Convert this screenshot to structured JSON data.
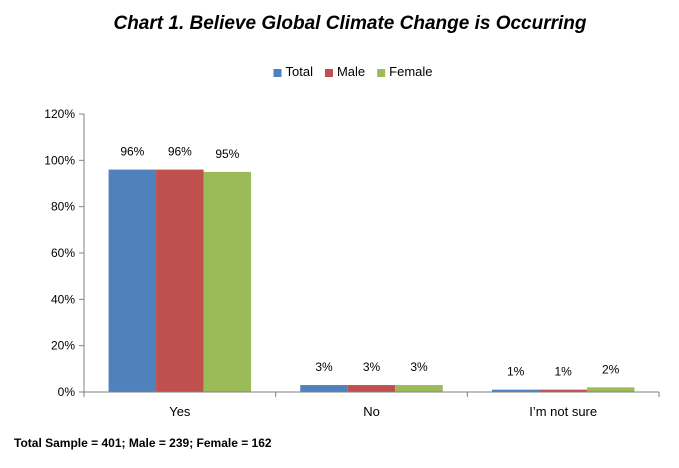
{
  "chart_data": {
    "type": "bar",
    "title": "Chart 1. Believe Global Climate Change is Occurring",
    "categories": [
      "Yes",
      "No",
      "I’m not sure"
    ],
    "series": [
      {
        "name": "Total",
        "values": [
          96,
          3,
          1
        ],
        "labels": [
          "96%",
          "3%",
          "1%"
        ],
        "color": "#4F81BD"
      },
      {
        "name": "Male",
        "values": [
          96,
          3,
          1
        ],
        "labels": [
          "96%",
          "3%",
          "1%"
        ],
        "color": "#C0504D"
      },
      {
        "name": "Female",
        "values": [
          95,
          3,
          2
        ],
        "labels": [
          "95%",
          "3%",
          "2%"
        ],
        "color": "#9BBB59"
      }
    ],
    "y_ticks": [
      "0%",
      "20%",
      "40%",
      "60%",
      "80%",
      "100%",
      "120%"
    ],
    "ylim": [
      0,
      120
    ],
    "legend_position": "top",
    "grid": false,
    "footnote": "Total Sample = 401; Male = 239; Female = 162"
  }
}
